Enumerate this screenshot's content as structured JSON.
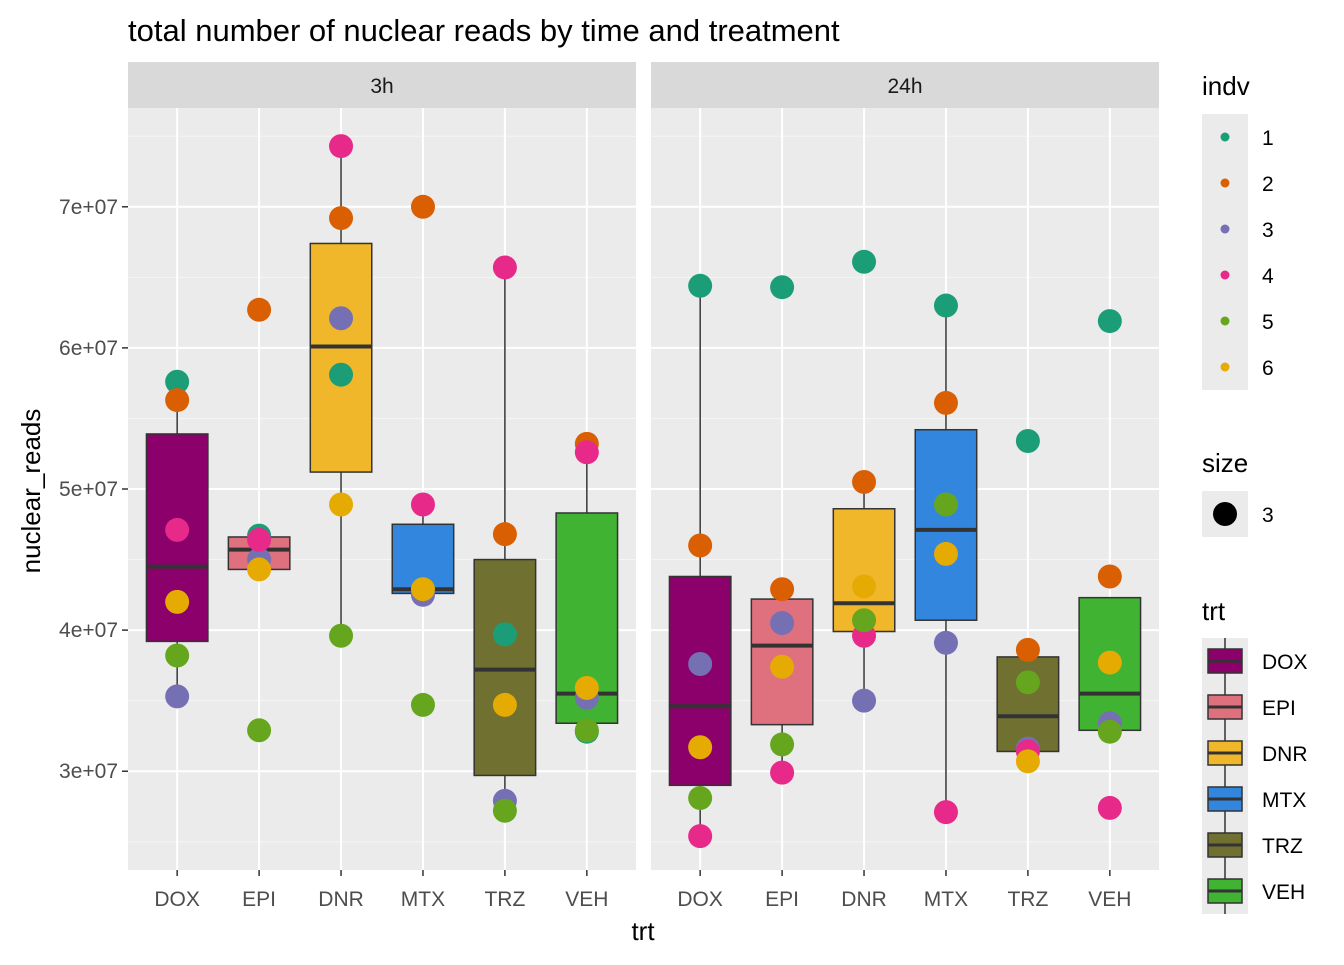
{
  "chart_data": {
    "type": "box",
    "title": "total number of nuclear reads by time and treatment",
    "xlabel": "trt",
    "ylabel": "nuclear_reads",
    "ylim": [
      23000000,
      77000000
    ],
    "y_ticks": [
      30000000,
      40000000,
      50000000,
      60000000,
      70000000
    ],
    "y_tick_labels": [
      "3e+07",
      "4e+07",
      "5e+07",
      "6e+07",
      "7e+07"
    ],
    "grid": true,
    "legend_position": "right",
    "categories": [
      "DOX",
      "EPI",
      "DNR",
      "MTX",
      "TRZ",
      "VEH"
    ],
    "facets": [
      "3h",
      "24h"
    ],
    "treatment_colors": {
      "DOX": "#8B006B",
      "EPI": "#DF707E",
      "DNR": "#F1B72B",
      "MTX": "#3386DD",
      "TRZ": "#707031",
      "VEH": "#41B333"
    },
    "indv_colors": {
      "1": "#1B9E77",
      "2": "#D95F02",
      "3": "#7570B3",
      "4": "#E7298A",
      "5": "#66A61E",
      "6": "#E6AB02"
    },
    "boxes": {
      "3h": {
        "DOX": {
          "q1": 39200000,
          "median": 44500000,
          "q3": 53900000,
          "lower": 35300000,
          "upper": 57600000
        },
        "EPI": {
          "q1": 44300000,
          "median": 45700000,
          "q3": 46600000,
          "lower": 44300000,
          "upper": 46600000
        },
        "DNR": {
          "q1": 51200000,
          "median": 60100000,
          "q3": 67400000,
          "lower": 39600000,
          "upper": 74300000
        },
        "MTX": {
          "q1": 42600000,
          "median": 42900000,
          "q3": 47500000,
          "lower": 42600000,
          "upper": 48900000
        },
        "TRZ": {
          "q1": 29700000,
          "median": 37200000,
          "q3": 45000000,
          "lower": 27200000,
          "upper": 65700000
        },
        "VEH": {
          "q1": 33400000,
          "median": 35500000,
          "q3": 48300000,
          "lower": 32800000,
          "upper": 53200000
        }
      },
      "24h": {
        "DOX": {
          "q1": 29000000,
          "median": 34600000,
          "q3": 43800000,
          "lower": 25400000,
          "upper": 64400000
        },
        "EPI": {
          "q1": 33300000,
          "median": 38900000,
          "q3": 42200000,
          "lower": 29900000,
          "upper": 42900000
        },
        "DNR": {
          "q1": 39900000,
          "median": 41900000,
          "q3": 48600000,
          "lower": 35000000,
          "upper": 50500000
        },
        "MTX": {
          "q1": 40700000,
          "median": 47100000,
          "q3": 54200000,
          "lower": 27100000,
          "upper": 63000000
        },
        "TRZ": {
          "q1": 31400000,
          "median": 33900000,
          "q3": 38100000,
          "lower": 30700000,
          "upper": 38600000
        },
        "VEH": {
          "q1": 32900000,
          "median": 35500000,
          "q3": 42300000,
          "lower": 32700000,
          "upper": 42300000
        }
      }
    },
    "points": {
      "3h": {
        "DOX": [
          57600000,
          56300000,
          35300000,
          47100000,
          38200000,
          42000000
        ],
        "EPI": [
          46700000,
          62700000,
          45000000,
          46400000,
          32900000,
          44300000
        ],
        "DNR": [
          58100000,
          69200000,
          62100000,
          74300000,
          39600000,
          48900000
        ],
        "MTX": [
          42900000,
          70000000,
          42500000,
          48900000,
          34700000,
          42900000
        ],
        "TRZ": [
          39700000,
          46800000,
          27900000,
          65700000,
          27200000,
          34700000
        ],
        "VEH": [
          32800000,
          53200000,
          35200000,
          52600000,
          32900000,
          35900000
        ]
      },
      "24h": {
        "DOX": [
          64400000,
          46000000,
          37600000,
          25400000,
          28100000,
          31700000
        ],
        "EPI": [
          64300000,
          42900000,
          40500000,
          29900000,
          31900000,
          37400000
        ],
        "DNR": [
          66100000,
          50500000,
          35000000,
          39600000,
          40700000,
          43100000
        ],
        "MTX": [
          63000000,
          56100000,
          39100000,
          27100000,
          48900000,
          45400000
        ],
        "TRZ": [
          53400000,
          38600000,
          31600000,
          31400000,
          36300000,
          30700000
        ],
        "VEH": [
          61900000,
          43800000,
          33400000,
          27400000,
          32800000,
          37700000
        ]
      }
    },
    "legends": {
      "indv": {
        "title": "indv",
        "labels": [
          "1",
          "2",
          "3",
          "4",
          "5",
          "6"
        ]
      },
      "size": {
        "title": "size",
        "labels": [
          "3"
        ]
      },
      "trt": {
        "title": "trt",
        "labels": [
          "DOX",
          "EPI",
          "DNR",
          "MTX",
          "TRZ",
          "VEH"
        ]
      }
    }
  }
}
